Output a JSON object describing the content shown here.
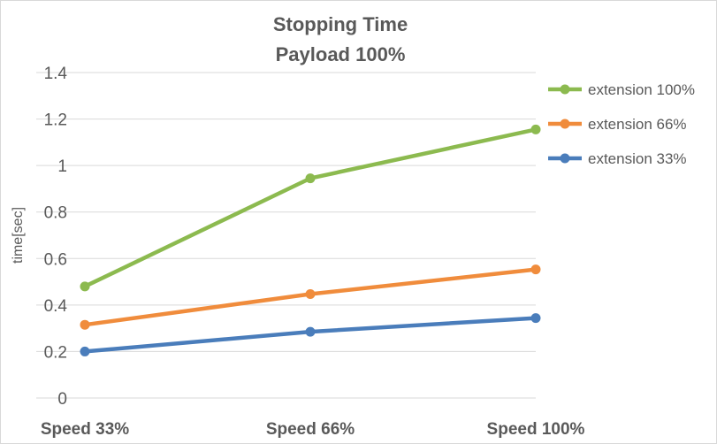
{
  "chart_data": {
    "type": "line",
    "title": "Stopping Time",
    "subtitle": "Payload 100%",
    "xlabel": "",
    "ylabel": "time[sec]",
    "categories": [
      "Speed 33%",
      "Speed 66%",
      "Speed 100%"
    ],
    "ylim": [
      0,
      1.4
    ],
    "yticks": [
      "0",
      "0.2",
      "0.4",
      "0.6",
      "0.8",
      "1",
      "1.2",
      "1.4"
    ],
    "grid": true,
    "legend_position": "top-right",
    "series": [
      {
        "name": "extension 100%",
        "values": [
          0.48,
          0.945,
          1.155
        ],
        "color": "#8cba4f"
      },
      {
        "name": "extension 66%",
        "values": [
          0.315,
          0.447,
          0.553
        ],
        "color": "#f08c3c"
      },
      {
        "name": "extension 33%",
        "values": [
          0.2,
          0.285,
          0.344
        ],
        "color": "#4a7dbb"
      }
    ]
  }
}
